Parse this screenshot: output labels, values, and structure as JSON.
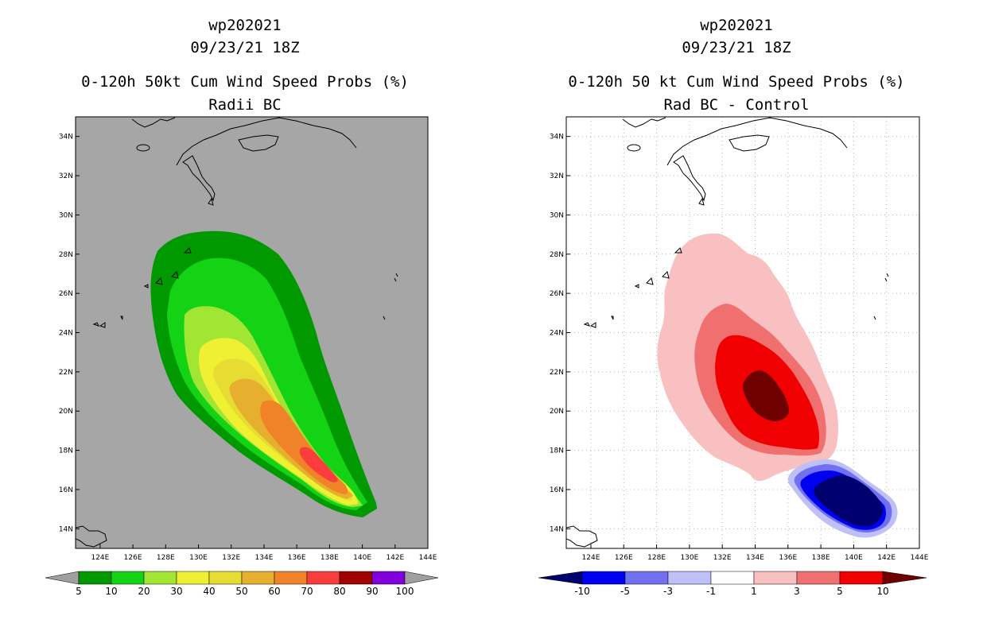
{
  "chart_data": [
    {
      "type": "heatmap",
      "storm_id": "wp202021",
      "datetime": "09/23/21 18Z",
      "title": "0-120h 50kt Cum Wind Speed Probs (%)",
      "subtitle": "Radii BC",
      "xlim": [
        122.5,
        144
      ],
      "ylim": [
        13,
        35
      ],
      "x_ticks": [
        "124E",
        "126E",
        "128E",
        "130E",
        "132E",
        "134E",
        "136E",
        "138E",
        "140E",
        "142E",
        "144E"
      ],
      "y_ticks": [
        "14N",
        "16N",
        "18N",
        "20N",
        "22N",
        "24N",
        "26N",
        "28N",
        "30N",
        "32N",
        "34N"
      ],
      "background_color": "#a6a6a6",
      "grid": false,
      "colorbar": {
        "labels": [
          "5",
          "10",
          "20",
          "30",
          "40",
          "50",
          "60",
          "70",
          "80",
          "90",
          "100"
        ],
        "colors": [
          "#009a00",
          "#14d214",
          "#a0e632",
          "#f0f032",
          "#e6dc32",
          "#e6af2d",
          "#f08228",
          "#fa3c3c",
          "#a00000",
          "#8200dc"
        ],
        "end_arrows": "#a0a0a0"
      },
      "contour_levels": [
        5,
        10,
        20,
        30,
        40,
        50,
        60,
        70
      ],
      "core_track": [
        [
          138.8,
          16.6
        ],
        [
          137.4,
          17.6
        ],
        [
          135.8,
          18.7
        ],
        [
          134.2,
          20.1
        ],
        [
          132.6,
          21.7
        ],
        [
          131.1,
          23.6
        ],
        [
          130.0,
          25.6
        ],
        [
          129.6,
          27.7
        ]
      ]
    },
    {
      "type": "heatmap",
      "storm_id": "wp202021",
      "datetime": "09/23/21 18Z",
      "title": "0-120h 50 kt Cum Wind Speed Probs (%)",
      "subtitle": "Rad BC - Control",
      "xlim": [
        122.5,
        144
      ],
      "ylim": [
        13,
        35
      ],
      "x_ticks": [
        "124E",
        "126E",
        "128E",
        "130E",
        "132E",
        "134E",
        "136E",
        "138E",
        "140E",
        "142E",
        "144E"
      ],
      "y_ticks": [
        "14N",
        "16N",
        "18N",
        "20N",
        "22N",
        "24N",
        "26N",
        "28N",
        "30N",
        "32N",
        "34N"
      ],
      "background_color": "#ffffff",
      "grid": true,
      "colorbar": {
        "labels": [
          "-10",
          "-5",
          "-3",
          "-1",
          "1",
          "3",
          "5",
          "10"
        ],
        "colors": [
          "#0000f0",
          "#7070f0",
          "#c0c0f8",
          "#ffffff",
          "#f8c0c0",
          "#f07070",
          "#f00000"
        ],
        "left_arrow": "#00006e",
        "right_arrow": "#6e0000"
      },
      "positive_difference_levels": [
        1,
        3,
        5,
        10
      ],
      "negative_difference_levels": [
        -1,
        -3,
        -5,
        -10
      ]
    }
  ]
}
